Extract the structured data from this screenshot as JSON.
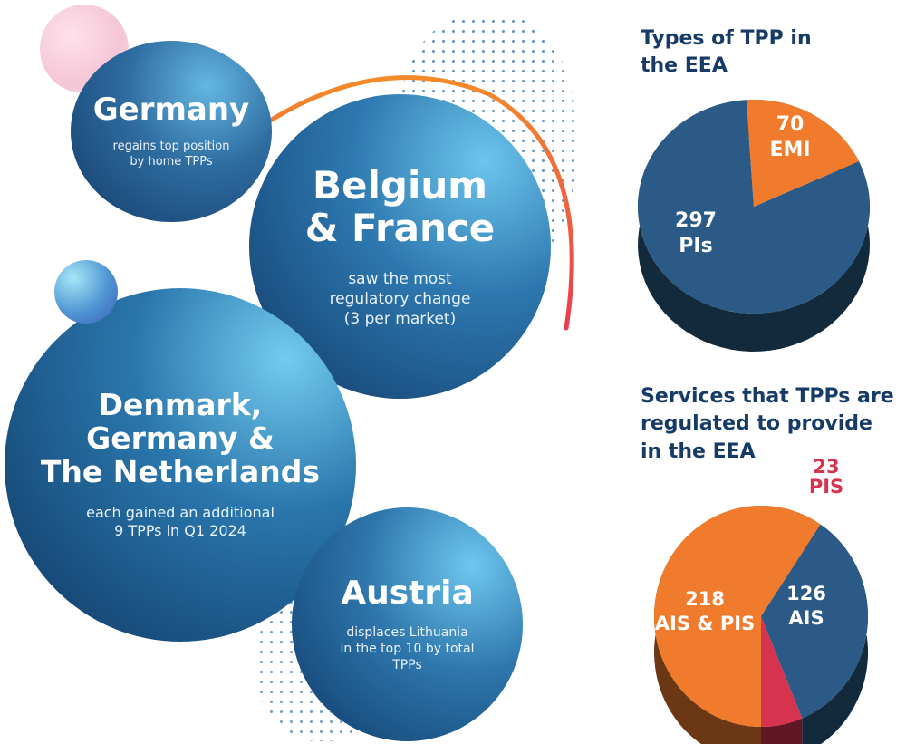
{
  "bubbles": {
    "germany": {
      "title": "Germany",
      "subtitle_lines": [
        "regains top position",
        "by home TPPs"
      ]
    },
    "belgium": {
      "title_lines": [
        "Belgium",
        "& France"
      ],
      "subtitle_lines": [
        "saw the most",
        "regulatory change",
        "(3 per market)"
      ]
    },
    "denmark": {
      "title_lines": [
        "Denmark,",
        "Germany &",
        "The Netherlands"
      ],
      "subtitle_lines": [
        "each gained an additional",
        "9 TPPs in Q1 2024"
      ]
    },
    "austria": {
      "title": "Austria",
      "subtitle_lines": [
        "displaces Lithuania",
        "in the top 10 by total",
        "TPPs"
      ]
    }
  },
  "colors": {
    "navy": "#163b66",
    "pie_blue": "#2b5a86",
    "pie_orange": "#f07b2c",
    "pie_red": "#d6344e",
    "arc_orange": "#f58a2a",
    "arc_red": "#ea3c50"
  },
  "chart_data": [
    {
      "type": "pie",
      "title_lines": [
        "Types of TPP in",
        "the EEA"
      ],
      "slices": [
        {
          "label": "PIs",
          "value": 297,
          "color": "#2b5a86"
        },
        {
          "label": "EMI",
          "value": 70,
          "color": "#f07b2c"
        }
      ],
      "legend": "none"
    },
    {
      "type": "pie",
      "title_lines": [
        "Services that TPPs are",
        "regulated to provide",
        "in the EEA"
      ],
      "slices": [
        {
          "label": "AIS & PIS",
          "value": 218,
          "color": "#f07b2c"
        },
        {
          "label": "AIS",
          "value": 126,
          "color": "#2b5a86"
        },
        {
          "label": "PIS",
          "value": 23,
          "color": "#d6344e"
        }
      ],
      "legend": "none"
    }
  ]
}
